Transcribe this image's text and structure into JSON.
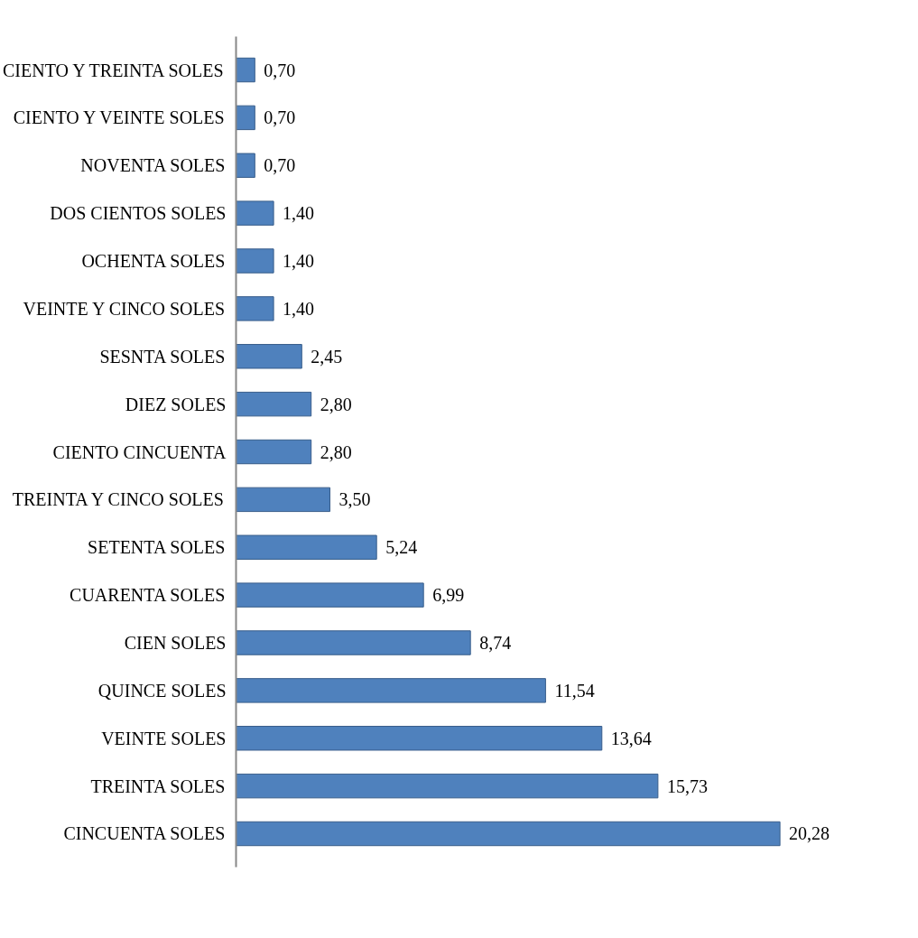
{
  "chart_data": {
    "type": "bar",
    "orientation": "horizontal",
    "categories": [
      "CIENTO Y TREINTA SOLES",
      "CIENTO Y VEINTE SOLES",
      "NOVENTA SOLES",
      "DOS CIENTOS SOLES",
      "OCHENTA SOLES",
      "VEINTE Y CINCO SOLES",
      "SESNTA SOLES",
      "DIEZ SOLES",
      "CIENTO CINCUENTA",
      "TREINTA Y CINCO SOLES",
      "SETENTA SOLES",
      "CUARENTA SOLES",
      "CIEN SOLES",
      "QUINCE SOLES",
      "VEINTE SOLES",
      "TREINTA SOLES",
      "CINCUENTA SOLES"
    ],
    "values": [
      0.7,
      0.7,
      0.7,
      1.4,
      1.4,
      1.4,
      2.45,
      2.8,
      2.8,
      3.5,
      5.24,
      6.99,
      8.74,
      11.54,
      13.64,
      15.73,
      20.28
    ],
    "value_labels": [
      "0,70",
      "0,70",
      "0,70",
      "1,40",
      "1,40",
      "1,40",
      "2,45",
      "2,80",
      "2,80",
      "3,50",
      "5,24",
      "6,99",
      "8,74",
      "11,54",
      "13,64",
      "15,73",
      "20,28"
    ],
    "color": "#4f81bd",
    "tick_labels": "y"
  }
}
